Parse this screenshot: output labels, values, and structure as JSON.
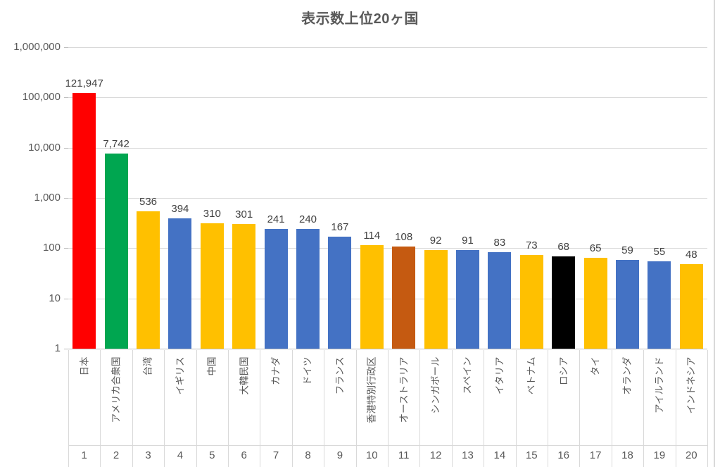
{
  "title": "表示数上位20ヶ国",
  "chart_data": {
    "type": "bar",
    "title": "表示数上位20ヶ国",
    "y_scale": "log10",
    "ylim": [
      1,
      1000000
    ],
    "y_tick_labels": [
      "1,000,000",
      "100,000",
      "10,000",
      "1,000",
      "100",
      "10",
      "1"
    ],
    "grid": true,
    "legend": "none",
    "categories": [
      "日本",
      "アメリカ合衆国",
      "台湾",
      "イギリス",
      "中国",
      "大韓民国",
      "カナダ",
      "ドイツ",
      "フランス",
      "香港特別行政区",
      "オーストラリア",
      "シンガポール",
      "スペイン",
      "イタリア",
      "ベトナム",
      "ロシア",
      "タイ",
      "オランダ",
      "アイルランド",
      "インドネシア"
    ],
    "ranks": [
      "1",
      "2",
      "3",
      "4",
      "5",
      "6",
      "7",
      "8",
      "9",
      "10",
      "11",
      "12",
      "13",
      "14",
      "15",
      "16",
      "17",
      "18",
      "19",
      "20"
    ],
    "values": [
      121947,
      7742,
      536,
      394,
      310,
      301,
      241,
      240,
      167,
      114,
      108,
      92,
      91,
      83,
      73,
      68,
      65,
      59,
      55,
      48
    ],
    "value_labels": [
      "121,947",
      "7,742",
      "536",
      "394",
      "310",
      "301",
      "241",
      "240",
      "167",
      "114",
      "108",
      "92",
      "91",
      "83",
      "73",
      "68",
      "65",
      "59",
      "55",
      "48"
    ],
    "bar_colors": [
      "#ff0000",
      "#00a650",
      "#ffc000",
      "#4472c4",
      "#ffc000",
      "#ffc000",
      "#4472c4",
      "#4472c4",
      "#4472c4",
      "#ffc000",
      "#c55a11",
      "#ffc000",
      "#4472c4",
      "#4472c4",
      "#ffc000",
      "#000000",
      "#ffc000",
      "#4472c4",
      "#4472c4",
      "#ffc000"
    ]
  },
  "colors": {
    "title_text": "#595959",
    "axis_text": "#595959",
    "value_label_text": "#404040",
    "gridline": "#d9d9d9",
    "axis_line": "#bfbfbf",
    "background": "#ffffff"
  }
}
